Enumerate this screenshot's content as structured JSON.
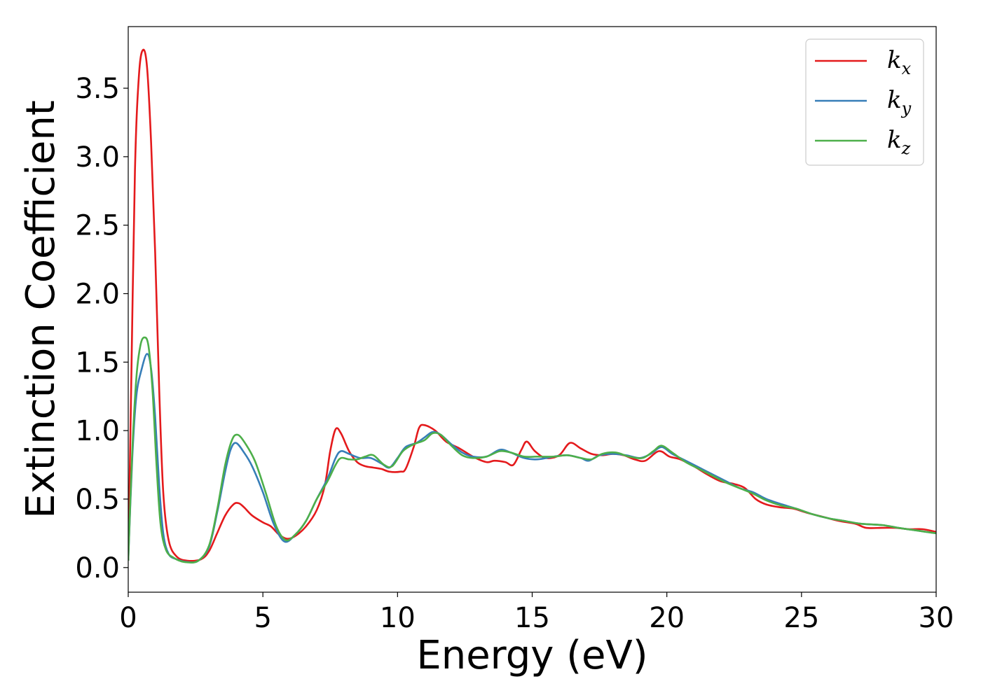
{
  "chart_data": {
    "type": "line",
    "xlabel": "Energy (eV)",
    "ylabel": "Extinction Coefficient",
    "xlim": [
      0,
      30
    ],
    "ylim": [
      -0.18,
      3.95
    ],
    "xticks": [
      0,
      5,
      10,
      15,
      20,
      25,
      30
    ],
    "xtick_labels": [
      "0",
      "5",
      "10",
      "15",
      "20",
      "25",
      "30"
    ],
    "yticks": [
      0.0,
      0.5,
      1.0,
      1.5,
      2.0,
      2.5,
      3.0,
      3.5
    ],
    "ytick_labels": [
      "0.0",
      "0.5",
      "1.0",
      "1.5",
      "2.0",
      "2.5",
      "3.0",
      "3.5"
    ],
    "grid": false,
    "legend_position": "top-right",
    "series": [
      {
        "name": "k",
        "subscript": "x",
        "color": "#e41a1c",
        "points": [
          [
            0,
            0.05
          ],
          [
            0.1,
            1.2
          ],
          [
            0.25,
            2.9
          ],
          [
            0.4,
            3.6
          ],
          [
            0.55,
            3.78
          ],
          [
            0.7,
            3.65
          ],
          [
            0.85,
            3.1
          ],
          [
            1.0,
            2.3
          ],
          [
            1.15,
            1.3
          ],
          [
            1.3,
            0.55
          ],
          [
            1.5,
            0.2
          ],
          [
            1.8,
            0.08
          ],
          [
            2.2,
            0.05
          ],
          [
            2.7,
            0.06
          ],
          [
            3.0,
            0.12
          ],
          [
            3.3,
            0.25
          ],
          [
            3.6,
            0.38
          ],
          [
            3.9,
            0.46
          ],
          [
            4.1,
            0.47
          ],
          [
            4.3,
            0.44
          ],
          [
            4.6,
            0.38
          ],
          [
            5.0,
            0.33
          ],
          [
            5.3,
            0.3
          ],
          [
            5.6,
            0.24
          ],
          [
            5.9,
            0.21
          ],
          [
            6.2,
            0.23
          ],
          [
            6.6,
            0.3
          ],
          [
            7.0,
            0.42
          ],
          [
            7.3,
            0.6
          ],
          [
            7.5,
            0.85
          ],
          [
            7.7,
            1.01
          ],
          [
            7.9,
            0.98
          ],
          [
            8.2,
            0.85
          ],
          [
            8.5,
            0.77
          ],
          [
            8.8,
            0.74
          ],
          [
            9.1,
            0.73
          ],
          [
            9.4,
            0.72
          ],
          [
            9.7,
            0.7
          ],
          [
            10.1,
            0.7
          ],
          [
            10.3,
            0.72
          ],
          [
            10.6,
            0.88
          ],
          [
            10.8,
            1.02
          ],
          [
            11.0,
            1.04
          ],
          [
            11.4,
            1.0
          ],
          [
            11.8,
            0.92
          ],
          [
            12.3,
            0.87
          ],
          [
            12.8,
            0.81
          ],
          [
            13.3,
            0.77
          ],
          [
            13.6,
            0.78
          ],
          [
            14.0,
            0.77
          ],
          [
            14.3,
            0.75
          ],
          [
            14.6,
            0.86
          ],
          [
            14.8,
            0.92
          ],
          [
            15.1,
            0.85
          ],
          [
            15.5,
            0.8
          ],
          [
            16.0,
            0.82
          ],
          [
            16.4,
            0.91
          ],
          [
            16.8,
            0.87
          ],
          [
            17.2,
            0.83
          ],
          [
            17.6,
            0.82
          ],
          [
            18.0,
            0.83
          ],
          [
            18.4,
            0.82
          ],
          [
            18.8,
            0.79
          ],
          [
            19.2,
            0.78
          ],
          [
            19.7,
            0.85
          ],
          [
            20.1,
            0.81
          ],
          [
            20.5,
            0.79
          ],
          [
            21.0,
            0.74
          ],
          [
            21.5,
            0.68
          ],
          [
            22.0,
            0.63
          ],
          [
            22.5,
            0.61
          ],
          [
            22.9,
            0.58
          ],
          [
            23.3,
            0.5
          ],
          [
            23.7,
            0.46
          ],
          [
            24.2,
            0.44
          ],
          [
            24.7,
            0.43
          ],
          [
            25.2,
            0.4
          ],
          [
            25.8,
            0.37
          ],
          [
            26.4,
            0.34
          ],
          [
            27.0,
            0.32
          ],
          [
            27.4,
            0.29
          ],
          [
            28.0,
            0.29
          ],
          [
            28.5,
            0.29
          ],
          [
            29.0,
            0.28
          ],
          [
            29.5,
            0.28
          ],
          [
            30.0,
            0.26
          ]
        ]
      },
      {
        "name": "k",
        "subscript": "y",
        "color": "#377eb8",
        "points": [
          [
            0,
            0.05
          ],
          [
            0.15,
            0.8
          ],
          [
            0.3,
            1.25
          ],
          [
            0.5,
            1.45
          ],
          [
            0.7,
            1.56
          ],
          [
            0.85,
            1.45
          ],
          [
            1.0,
            1.1
          ],
          [
            1.15,
            0.6
          ],
          [
            1.3,
            0.25
          ],
          [
            1.5,
            0.1
          ],
          [
            1.8,
            0.06
          ],
          [
            2.2,
            0.04
          ],
          [
            2.6,
            0.05
          ],
          [
            3.0,
            0.15
          ],
          [
            3.3,
            0.4
          ],
          [
            3.6,
            0.7
          ],
          [
            3.8,
            0.86
          ],
          [
            4.0,
            0.91
          ],
          [
            4.3,
            0.84
          ],
          [
            4.6,
            0.74
          ],
          [
            5.0,
            0.55
          ],
          [
            5.4,
            0.32
          ],
          [
            5.8,
            0.19
          ],
          [
            6.2,
            0.24
          ],
          [
            6.6,
            0.34
          ],
          [
            7.0,
            0.5
          ],
          [
            7.4,
            0.65
          ],
          [
            7.7,
            0.8
          ],
          [
            7.9,
            0.85
          ],
          [
            8.2,
            0.83
          ],
          [
            8.6,
            0.8
          ],
          [
            9.0,
            0.8
          ],
          [
            9.4,
            0.76
          ],
          [
            9.7,
            0.73
          ],
          [
            10.0,
            0.8
          ],
          [
            10.3,
            0.88
          ],
          [
            10.7,
            0.91
          ],
          [
            11.0,
            0.95
          ],
          [
            11.3,
            0.99
          ],
          [
            11.6,
            0.97
          ],
          [
            12.0,
            0.9
          ],
          [
            12.4,
            0.84
          ],
          [
            12.8,
            0.81
          ],
          [
            13.3,
            0.81
          ],
          [
            13.8,
            0.86
          ],
          [
            14.2,
            0.84
          ],
          [
            14.7,
            0.8
          ],
          [
            15.2,
            0.79
          ],
          [
            15.8,
            0.81
          ],
          [
            16.3,
            0.82
          ],
          [
            16.8,
            0.8
          ],
          [
            17.1,
            0.78
          ],
          [
            17.5,
            0.82
          ],
          [
            18.0,
            0.83
          ],
          [
            18.5,
            0.82
          ],
          [
            19.0,
            0.8
          ],
          [
            19.4,
            0.83
          ],
          [
            19.8,
            0.88
          ],
          [
            20.2,
            0.83
          ],
          [
            20.7,
            0.78
          ],
          [
            21.2,
            0.73
          ],
          [
            21.7,
            0.68
          ],
          [
            22.2,
            0.63
          ],
          [
            22.7,
            0.58
          ],
          [
            23.2,
            0.55
          ],
          [
            23.7,
            0.5
          ],
          [
            24.3,
            0.46
          ],
          [
            24.8,
            0.43
          ],
          [
            25.4,
            0.39
          ],
          [
            26.0,
            0.36
          ],
          [
            26.6,
            0.34
          ],
          [
            27.2,
            0.32
          ],
          [
            28.0,
            0.31
          ],
          [
            28.6,
            0.29
          ],
          [
            29.3,
            0.27
          ],
          [
            30.0,
            0.25
          ]
        ]
      },
      {
        "name": "k",
        "subscript": "z",
        "color": "#4daf4a",
        "points": [
          [
            0,
            0.05
          ],
          [
            0.15,
            0.85
          ],
          [
            0.3,
            1.38
          ],
          [
            0.45,
            1.62
          ],
          [
            0.6,
            1.68
          ],
          [
            0.75,
            1.62
          ],
          [
            0.9,
            1.3
          ],
          [
            1.05,
            0.75
          ],
          [
            1.2,
            0.32
          ],
          [
            1.4,
            0.13
          ],
          [
            1.7,
            0.07
          ],
          [
            2.1,
            0.04
          ],
          [
            2.6,
            0.05
          ],
          [
            3.0,
            0.16
          ],
          [
            3.3,
            0.42
          ],
          [
            3.6,
            0.75
          ],
          [
            3.85,
            0.93
          ],
          [
            4.05,
            0.97
          ],
          [
            4.3,
            0.92
          ],
          [
            4.7,
            0.78
          ],
          [
            5.1,
            0.55
          ],
          [
            5.5,
            0.3
          ],
          [
            5.85,
            0.2
          ],
          [
            6.2,
            0.24
          ],
          [
            6.6,
            0.34
          ],
          [
            7.0,
            0.5
          ],
          [
            7.4,
            0.63
          ],
          [
            7.7,
            0.75
          ],
          [
            7.9,
            0.8
          ],
          [
            8.2,
            0.79
          ],
          [
            8.5,
            0.79
          ],
          [
            8.8,
            0.81
          ],
          [
            9.1,
            0.82
          ],
          [
            9.5,
            0.75
          ],
          [
            9.8,
            0.74
          ],
          [
            10.2,
            0.85
          ],
          [
            10.6,
            0.9
          ],
          [
            11.0,
            0.93
          ],
          [
            11.3,
            0.98
          ],
          [
            11.6,
            0.97
          ],
          [
            12.0,
            0.89
          ],
          [
            12.4,
            0.82
          ],
          [
            12.8,
            0.8
          ],
          [
            13.3,
            0.81
          ],
          [
            13.8,
            0.85
          ],
          [
            14.2,
            0.84
          ],
          [
            14.7,
            0.81
          ],
          [
            15.2,
            0.81
          ],
          [
            15.8,
            0.81
          ],
          [
            16.3,
            0.82
          ],
          [
            16.8,
            0.8
          ],
          [
            17.2,
            0.79
          ],
          [
            17.6,
            0.83
          ],
          [
            18.1,
            0.84
          ],
          [
            18.6,
            0.81
          ],
          [
            19.1,
            0.8
          ],
          [
            19.5,
            0.85
          ],
          [
            19.8,
            0.89
          ],
          [
            20.2,
            0.84
          ],
          [
            20.7,
            0.77
          ],
          [
            21.2,
            0.72
          ],
          [
            21.7,
            0.67
          ],
          [
            22.2,
            0.62
          ],
          [
            22.7,
            0.58
          ],
          [
            23.2,
            0.54
          ],
          [
            23.7,
            0.49
          ],
          [
            24.3,
            0.45
          ],
          [
            24.8,
            0.43
          ],
          [
            25.4,
            0.39
          ],
          [
            26.0,
            0.36
          ],
          [
            26.6,
            0.34
          ],
          [
            27.2,
            0.32
          ],
          [
            28.0,
            0.31
          ],
          [
            28.6,
            0.29
          ],
          [
            29.3,
            0.27
          ],
          [
            30.0,
            0.25
          ]
        ]
      }
    ]
  }
}
